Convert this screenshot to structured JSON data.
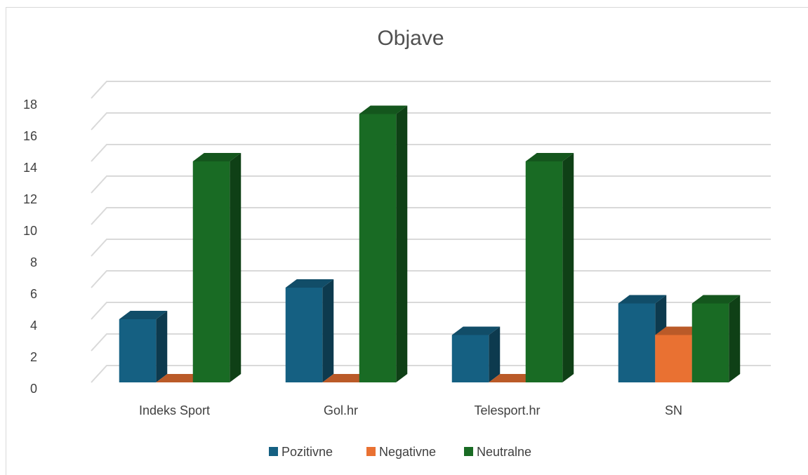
{
  "chart_data": {
    "type": "bar3d",
    "title": "Objave",
    "categories": [
      "Indeks Sport",
      "Gol.hr",
      "Telesport.hr",
      "SN"
    ],
    "series": [
      {
        "name": "Pozitivne",
        "color": "#156082",
        "values": [
          4,
          6,
          3,
          5
        ]
      },
      {
        "name": "Negativne",
        "color": "#e97132",
        "values": [
          0,
          0,
          0,
          3
        ]
      },
      {
        "name": "Neutralne",
        "color": "#196b24",
        "values": [
          14,
          17,
          14,
          5
        ]
      }
    ],
    "ylim": [
      0,
      18
    ],
    "yticks": [
      0,
      2,
      4,
      6,
      8,
      10,
      12,
      14,
      16,
      18
    ],
    "grid": true,
    "legend": "bottom"
  }
}
